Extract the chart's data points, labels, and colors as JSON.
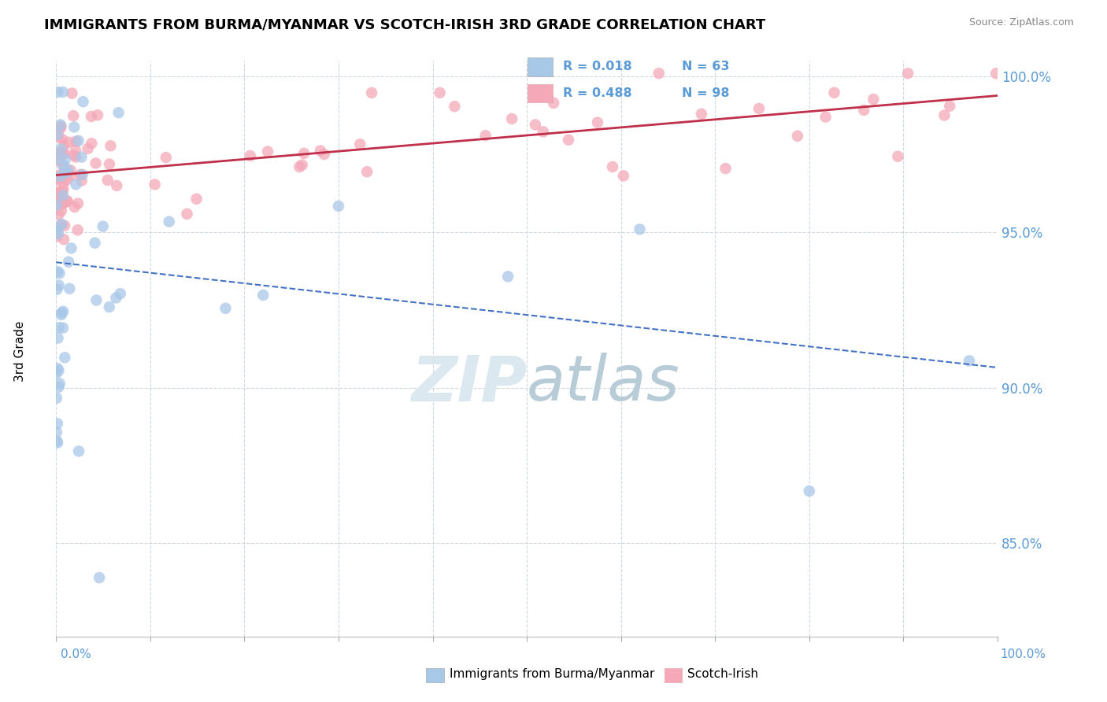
{
  "title": "IMMIGRANTS FROM BURMA/MYANMAR VS SCOTCH-IRISH 3RD GRADE CORRELATION CHART",
  "source": "Source: ZipAtlas.com",
  "ylabel": "3rd Grade",
  "r_blue": 0.018,
  "n_blue": 63,
  "r_pink": 0.488,
  "n_pink": 98,
  "color_blue": "#a8c8e8",
  "color_pink": "#f4a8b8",
  "color_trend_blue": "#4472c4",
  "color_trend_pink": "#c0304a",
  "color_axis_labels": "#5b9bd5",
  "color_watermark": "#dce8f0",
  "background_color": "#ffffff",
  "grid_color": "#d0d8e0",
  "yticks": [
    0.85,
    0.9,
    0.95,
    1.0
  ],
  "ytick_labels": [
    "85.0%",
    "90.0%",
    "95.0%",
    "100.0%"
  ],
  "xlim": [
    0.0,
    1.0
  ],
  "ylim": [
    0.82,
    1.005
  ],
  "figsize": [
    14.06,
    8.92
  ],
  "dpi": 100
}
